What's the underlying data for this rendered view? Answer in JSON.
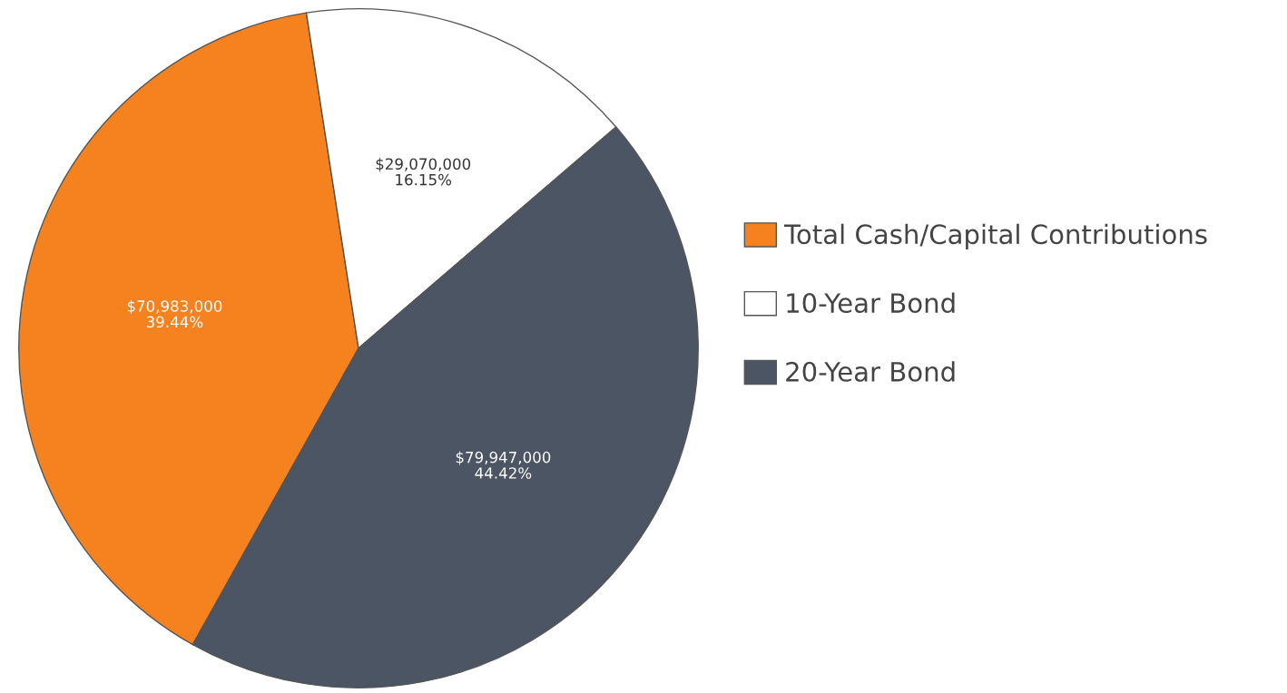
{
  "chart_data": {
    "type": "pie",
    "categories": [
      "Total Cash/Capital Contributions",
      "10-Year Bond",
      "20-Year Bond"
    ],
    "values": [
      70983000,
      29070000,
      79947000
    ],
    "colors": [
      "#f5821f",
      "#ffffff",
      "#4b5563"
    ],
    "value_labels": [
      "$70,983,000\n39.44%",
      "$29,070,000\n16.15%",
      "$79,947,000\n44.42%"
    ],
    "legend": "right"
  }
}
